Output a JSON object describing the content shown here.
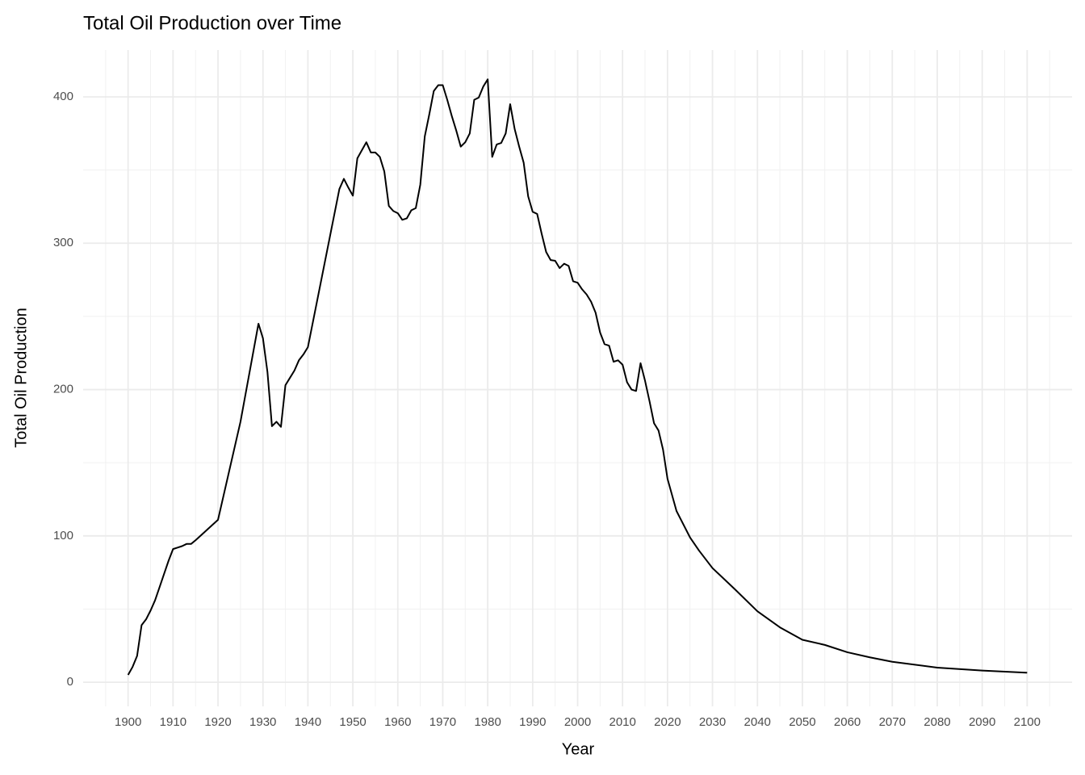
{
  "chart_data": {
    "type": "line",
    "title": "Total Oil Production over Time",
    "x_label": "Year",
    "y_label": "Total Oil Production",
    "x": [
      1900,
      1901,
      1902,
      1903,
      1904,
      1905,
      1906,
      1907,
      1908,
      1909,
      1910,
      1911,
      1912,
      1913,
      1914,
      1915,
      1920,
      1925,
      1929,
      1930,
      1931,
      1932,
      1933,
      1934,
      1935,
      1936,
      1937,
      1938,
      1939,
      1940,
      1947,
      1948,
      1949,
      1950,
      1951,
      1952,
      1953,
      1954,
      1955,
      1956,
      1957,
      1958,
      1959,
      1960,
      1961,
      1962,
      1963,
      1964,
      1965,
      1966,
      1967,
      1968,
      1969,
      1970,
      1971,
      1972,
      1973,
      1974,
      1975,
      1976,
      1977,
      1978,
      1979,
      1980,
      1981,
      1982,
      1983,
      1984,
      1985,
      1986,
      1987,
      1988,
      1989,
      1990,
      1991,
      1992,
      1993,
      1994,
      1995,
      1996,
      1997,
      1998,
      1999,
      2000,
      2001,
      2002,
      2003,
      2004,
      2005,
      2006,
      2007,
      2008,
      2009,
      2010,
      2011,
      2012,
      2013,
      2014,
      2015,
      2016,
      2017,
      2018,
      2019,
      2020,
      2022,
      2025,
      2027,
      2030,
      2035,
      2040,
      2045,
      2050,
      2055,
      2060,
      2065,
      2070,
      2080,
      2090,
      2100
    ],
    "series": [
      {
        "name": "Total Oil Production",
        "color": "#000000",
        "values": [
          5,
          10.5,
          18,
          39,
          43,
          49,
          56,
          65,
          74,
          83,
          91,
          92,
          93,
          94.5,
          94.5,
          97,
          111,
          178,
          245,
          235,
          212,
          175,
          178,
          174.5,
          203,
          208,
          213,
          220,
          224,
          229,
          337,
          344,
          338,
          332.5,
          358,
          363.5,
          369,
          362,
          362,
          359,
          349,
          325.5,
          322,
          320.5,
          316,
          317,
          322.5,
          324,
          340,
          373,
          388,
          404,
          408,
          408,
          398,
          387,
          377,
          366,
          369,
          375,
          398,
          399.5,
          407,
          412,
          359,
          367.5,
          368.5,
          375,
          395,
          378,
          366,
          355,
          332,
          321.5,
          320,
          306.5,
          294,
          288.5,
          288,
          283,
          286,
          284.5,
          274,
          273,
          268.5,
          265,
          260,
          252.5,
          239,
          231,
          230,
          219,
          220,
          217,
          205,
          200,
          199,
          218,
          206,
          192,
          177,
          172,
          159,
          139,
          117,
          99,
          90,
          78,
          63.5,
          48.5,
          37.5,
          29,
          25.5,
          20.5,
          17,
          14,
          10,
          8,
          6.5
        ]
      }
    ],
    "xlim": [
      1890,
      2110
    ],
    "ylim": [
      -16.5,
      432
    ],
    "xticks": [
      1900,
      1910,
      1920,
      1930,
      1940,
      1950,
      1960,
      1970,
      1980,
      1990,
      2000,
      2010,
      2020,
      2030,
      2040,
      2050,
      2060,
      2070,
      2080,
      2090,
      2100
    ],
    "yticks": [
      0,
      100,
      200,
      300,
      400
    ],
    "grid": true
  }
}
